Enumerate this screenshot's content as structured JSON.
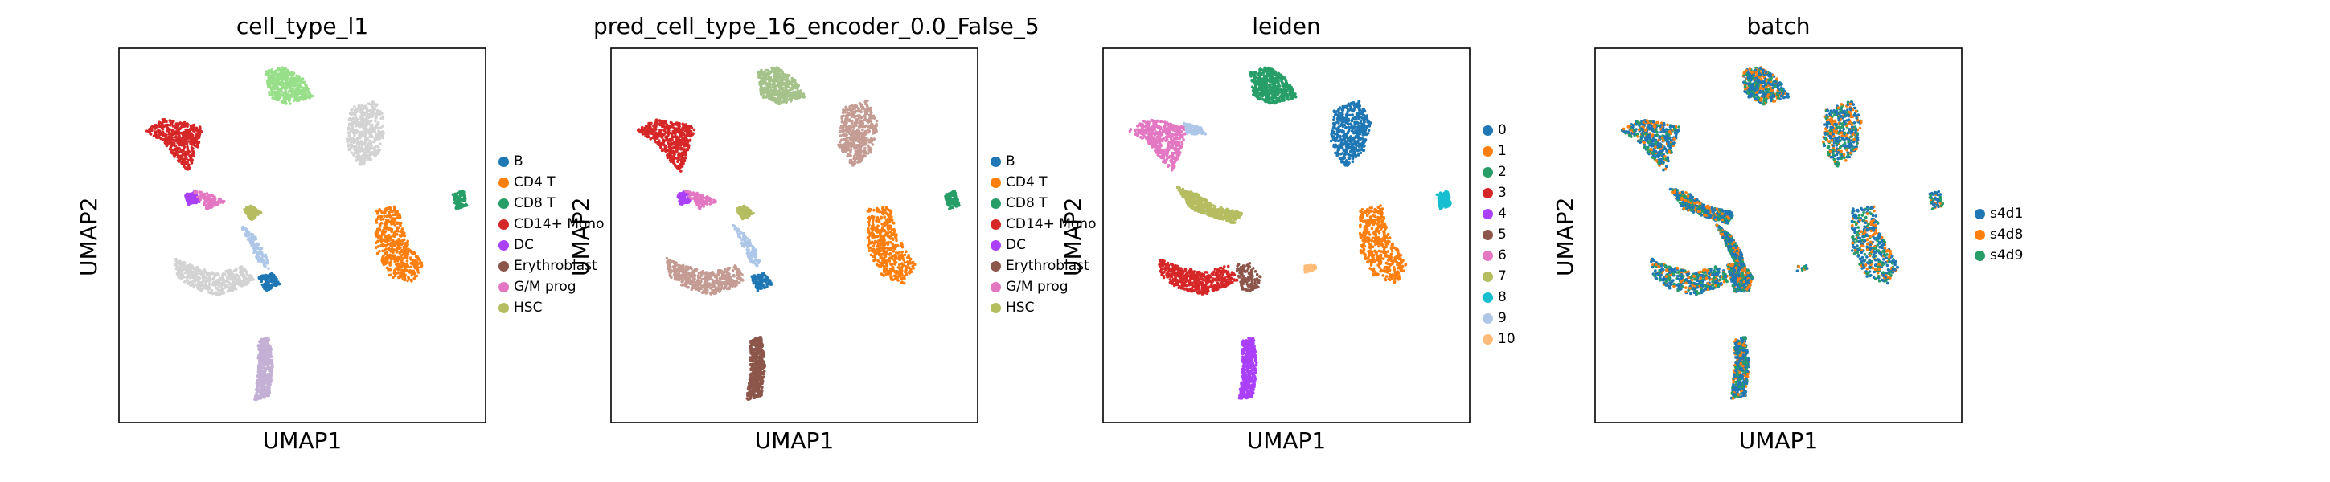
{
  "colors": {
    "B": "#1f77b4",
    "CD4 T": "#ff7f0e",
    "CD8 T": "#279e68",
    "CD14+ Mono": "#d62728",
    "DC": "#aa40fc",
    "Erythroblast": "#8c564b",
    "G/M prog": "#e377c2",
    "HSC": "#b5bd61",
    "other_lightgray": "#d3d3d3",
    "other_tan": "#c49c94",
    "other_lightgreen": "#98df8a",
    "other_lightblue": "#aec7e8",
    "other_cyan": "#17becf",
    "other_peach": "#ffbb78",
    "other_pink": "#ff9896",
    "other_lavender": "#c5b0d5",
    "other_sage": "#a5c28a"
  },
  "chart_data": [
    {
      "type": "scatter",
      "title": "cell_type_l1",
      "xlabel": "UMAP1",
      "ylabel": "UMAP2",
      "legend": {
        "placement": "right",
        "entries": [
          {
            "label": "B",
            "color": "#1f77b4"
          },
          {
            "label": "CD4 T",
            "color": "#ff7f0e"
          },
          {
            "label": "CD8 T",
            "color": "#279e68"
          },
          {
            "label": "CD14+ Mono",
            "color": "#d62728"
          },
          {
            "label": "DC",
            "color": "#aa40fc"
          },
          {
            "label": "Erythroblast",
            "color": "#8c564b"
          },
          {
            "label": "G/M prog",
            "color": "#e377c2"
          },
          {
            "label": "HSC",
            "color": "#b5bd61"
          }
        ]
      },
      "clusters": [
        {
          "color": "#d62728",
          "segment": [
            [
              0.08,
              0.22
            ],
            [
              0.24,
              0.18
            ]
          ],
          "region": "mono-arm"
        },
        {
          "color": "#aa40fc",
          "segment": [
            [
              0.2,
              0.37
            ],
            [
              0.22,
              0.41
            ]
          ],
          "region": "dc"
        },
        {
          "color": "#e377c2",
          "segment": [
            [
              0.22,
              0.38
            ],
            [
              0.3,
              0.41
            ]
          ],
          "region": "gmp"
        },
        {
          "color": "#b5bd61",
          "segment": [
            [
              0.36,
              0.42
            ],
            [
              0.38,
              0.44
            ]
          ],
          "region": "hsc"
        },
        {
          "color": "#d3d3d3",
          "segment": [
            [
              0.15,
              0.58
            ],
            [
              0.45,
              0.55
            ]
          ],
          "region": "bottom-arm"
        },
        {
          "color": "#1f77b4",
          "segment": [
            [
              0.38,
              0.62
            ],
            [
              0.42,
              0.62
            ]
          ],
          "region": "b-lower"
        },
        {
          "color": "#aec7e8",
          "segment": [
            [
              0.35,
              0.5
            ],
            [
              0.42,
              0.55
            ]
          ],
          "region": "b-upper"
        },
        {
          "color": "#98df8a",
          "segment": [
            [
              0.4,
              0.08
            ],
            [
              0.52,
              0.1
            ]
          ],
          "region": "cd8-top"
        },
        {
          "color": "#d3d3d3",
          "segment": [
            [
              0.65,
              0.2
            ],
            [
              0.72,
              0.28
            ]
          ],
          "region": "gray-right"
        },
        {
          "color": "#ff7f0e",
          "segment": [
            [
              0.72,
              0.48
            ],
            [
              0.78,
              0.6
            ]
          ],
          "region": "cd4"
        },
        {
          "color": "#279e68",
          "segment": [
            [
              0.92,
              0.4
            ],
            [
              0.94,
              0.41
            ]
          ],
          "region": "cd8-right"
        },
        {
          "color": "#c5b0d5",
          "segment": [
            [
              0.39,
              0.82
            ],
            [
              0.41,
              0.9
            ]
          ],
          "region": "bottom-spur"
        }
      ]
    },
    {
      "type": "scatter",
      "title": "pred_cell_type_16_encoder_0.0_False_5",
      "xlabel": "UMAP1",
      "ylabel": "UMAP2",
      "legend": {
        "placement": "right",
        "entries": [
          {
            "label": "B",
            "color": "#1f77b4"
          },
          {
            "label": "CD4 T",
            "color": "#ff7f0e"
          },
          {
            "label": "CD8 T",
            "color": "#279e68"
          },
          {
            "label": "CD14+ Mono",
            "color": "#d62728"
          },
          {
            "label": "DC",
            "color": "#aa40fc"
          },
          {
            "label": "Erythroblast",
            "color": "#8c564b"
          },
          {
            "label": "G/M prog",
            "color": "#e377c2"
          },
          {
            "label": "HSC",
            "color": "#b5bd61"
          }
        ]
      },
      "clusters": [
        {
          "color": "#d62728",
          "segment": [
            [
              0.08,
              0.22
            ],
            [
              0.24,
              0.18
            ]
          ],
          "region": "mono-arm"
        },
        {
          "color": "#aa40fc",
          "segment": [
            [
              0.2,
              0.37
            ],
            [
              0.22,
              0.41
            ]
          ],
          "region": "dc"
        },
        {
          "color": "#e377c2",
          "segment": [
            [
              0.22,
              0.38
            ],
            [
              0.3,
              0.41
            ]
          ],
          "region": "gmp"
        },
        {
          "color": "#b5bd61",
          "segment": [
            [
              0.36,
              0.42
            ],
            [
              0.38,
              0.44
            ]
          ],
          "region": "hsc"
        },
        {
          "color": "#c49c94",
          "segment": [
            [
              0.15,
              0.58
            ],
            [
              0.45,
              0.55
            ]
          ],
          "region": "bottom-arm"
        },
        {
          "color": "#1f77b4",
          "segment": [
            [
              0.38,
              0.62
            ],
            [
              0.42,
              0.62
            ]
          ],
          "region": "b-lower"
        },
        {
          "color": "#aec7e8",
          "segment": [
            [
              0.35,
              0.5
            ],
            [
              0.42,
              0.55
            ]
          ],
          "region": "b-upper"
        },
        {
          "color": "#a5c28a",
          "segment": [
            [
              0.4,
              0.08
            ],
            [
              0.52,
              0.1
            ]
          ],
          "region": "cd8-top"
        },
        {
          "color": "#c49c94",
          "segment": [
            [
              0.65,
              0.2
            ],
            [
              0.72,
              0.28
            ]
          ],
          "region": "tan-right"
        },
        {
          "color": "#ff7f0e",
          "segment": [
            [
              0.72,
              0.48
            ],
            [
              0.78,
              0.6
            ]
          ],
          "region": "cd4"
        },
        {
          "color": "#279e68",
          "segment": [
            [
              0.92,
              0.4
            ],
            [
              0.94,
              0.41
            ]
          ],
          "region": "cd8-right"
        },
        {
          "color": "#8c564b",
          "segment": [
            [
              0.39,
              0.82
            ],
            [
              0.41,
              0.9
            ]
          ],
          "region": "bottom-spur"
        }
      ]
    },
    {
      "type": "scatter",
      "title": "leiden",
      "xlabel": "UMAP1",
      "ylabel": "UMAP2",
      "legend": {
        "placement": "right",
        "entries": [
          {
            "label": "0",
            "color": "#1f77b4"
          },
          {
            "label": "1",
            "color": "#ff7f0e"
          },
          {
            "label": "2",
            "color": "#279e68"
          },
          {
            "label": "3",
            "color": "#d62728"
          },
          {
            "label": "4",
            "color": "#aa40fc"
          },
          {
            "label": "5",
            "color": "#8c564b"
          },
          {
            "label": "6",
            "color": "#e377c2"
          },
          {
            "label": "7",
            "color": "#b5bd61"
          },
          {
            "label": "8",
            "color": "#17becf"
          },
          {
            "label": "9",
            "color": "#aec7e8"
          },
          {
            "label": "10",
            "color": "#ffbb78"
          }
        ]
      },
      "clusters": [
        {
          "color": "#e377c2",
          "segment": [
            [
              0.08,
              0.22
            ],
            [
              0.24,
              0.18
            ]
          ],
          "region": "left-arm"
        },
        {
          "color": "#aec7e8",
          "segment": [
            [
              0.24,
              0.22
            ],
            [
              0.26,
              0.22
            ]
          ],
          "region": "top-left-spur"
        },
        {
          "color": "#b5bd61",
          "segment": [
            [
              0.2,
              0.37
            ],
            [
              0.36,
              0.42
            ]
          ],
          "region": "mid-left"
        },
        {
          "color": "#d62728",
          "segment": [
            [
              0.15,
              0.58
            ],
            [
              0.35,
              0.55
            ]
          ],
          "region": "bottom-arm"
        },
        {
          "color": "#8c564b",
          "segment": [
            [
              0.38,
              0.6
            ],
            [
              0.42,
              0.62
            ]
          ],
          "region": "bottom-right"
        },
        {
          "color": "#279e68",
          "segment": [
            [
              0.4,
              0.08
            ],
            [
              0.52,
              0.1
            ]
          ],
          "region": "top-mid"
        },
        {
          "color": "#1f77b4",
          "segment": [
            [
              0.65,
              0.2
            ],
            [
              0.72,
              0.28
            ]
          ],
          "region": "top-right"
        },
        {
          "color": "#ff7f0e",
          "segment": [
            [
              0.72,
              0.48
            ],
            [
              0.78,
              0.6
            ]
          ],
          "region": "mid-right"
        },
        {
          "color": "#17becf",
          "segment": [
            [
              0.92,
              0.4
            ],
            [
              0.94,
              0.41
            ]
          ],
          "region": "far-right"
        },
        {
          "color": "#aa40fc",
          "segment": [
            [
              0.39,
              0.8
            ],
            [
              0.41,
              0.93
            ]
          ],
          "region": "bottom-spur"
        },
        {
          "color": "#ffbb78",
          "segment": [
            [
              0.56,
              0.58
            ],
            [
              0.58,
              0.59
            ]
          ],
          "region": "tiny"
        }
      ]
    },
    {
      "type": "scatter",
      "title": "batch",
      "xlabel": "UMAP1",
      "ylabel": "UMAP2",
      "legend": {
        "placement": "right",
        "entries": [
          {
            "label": "s4d1",
            "color": "#1f77b4"
          },
          {
            "label": "s4d8",
            "color": "#ff7f0e"
          },
          {
            "label": "s4d9",
            "color": "#279e68"
          }
        ]
      },
      "mixed": true,
      "mix_colors": [
        "#1f77b4",
        "#1f77b4",
        "#ff7f0e",
        "#279e68"
      ]
    }
  ]
}
